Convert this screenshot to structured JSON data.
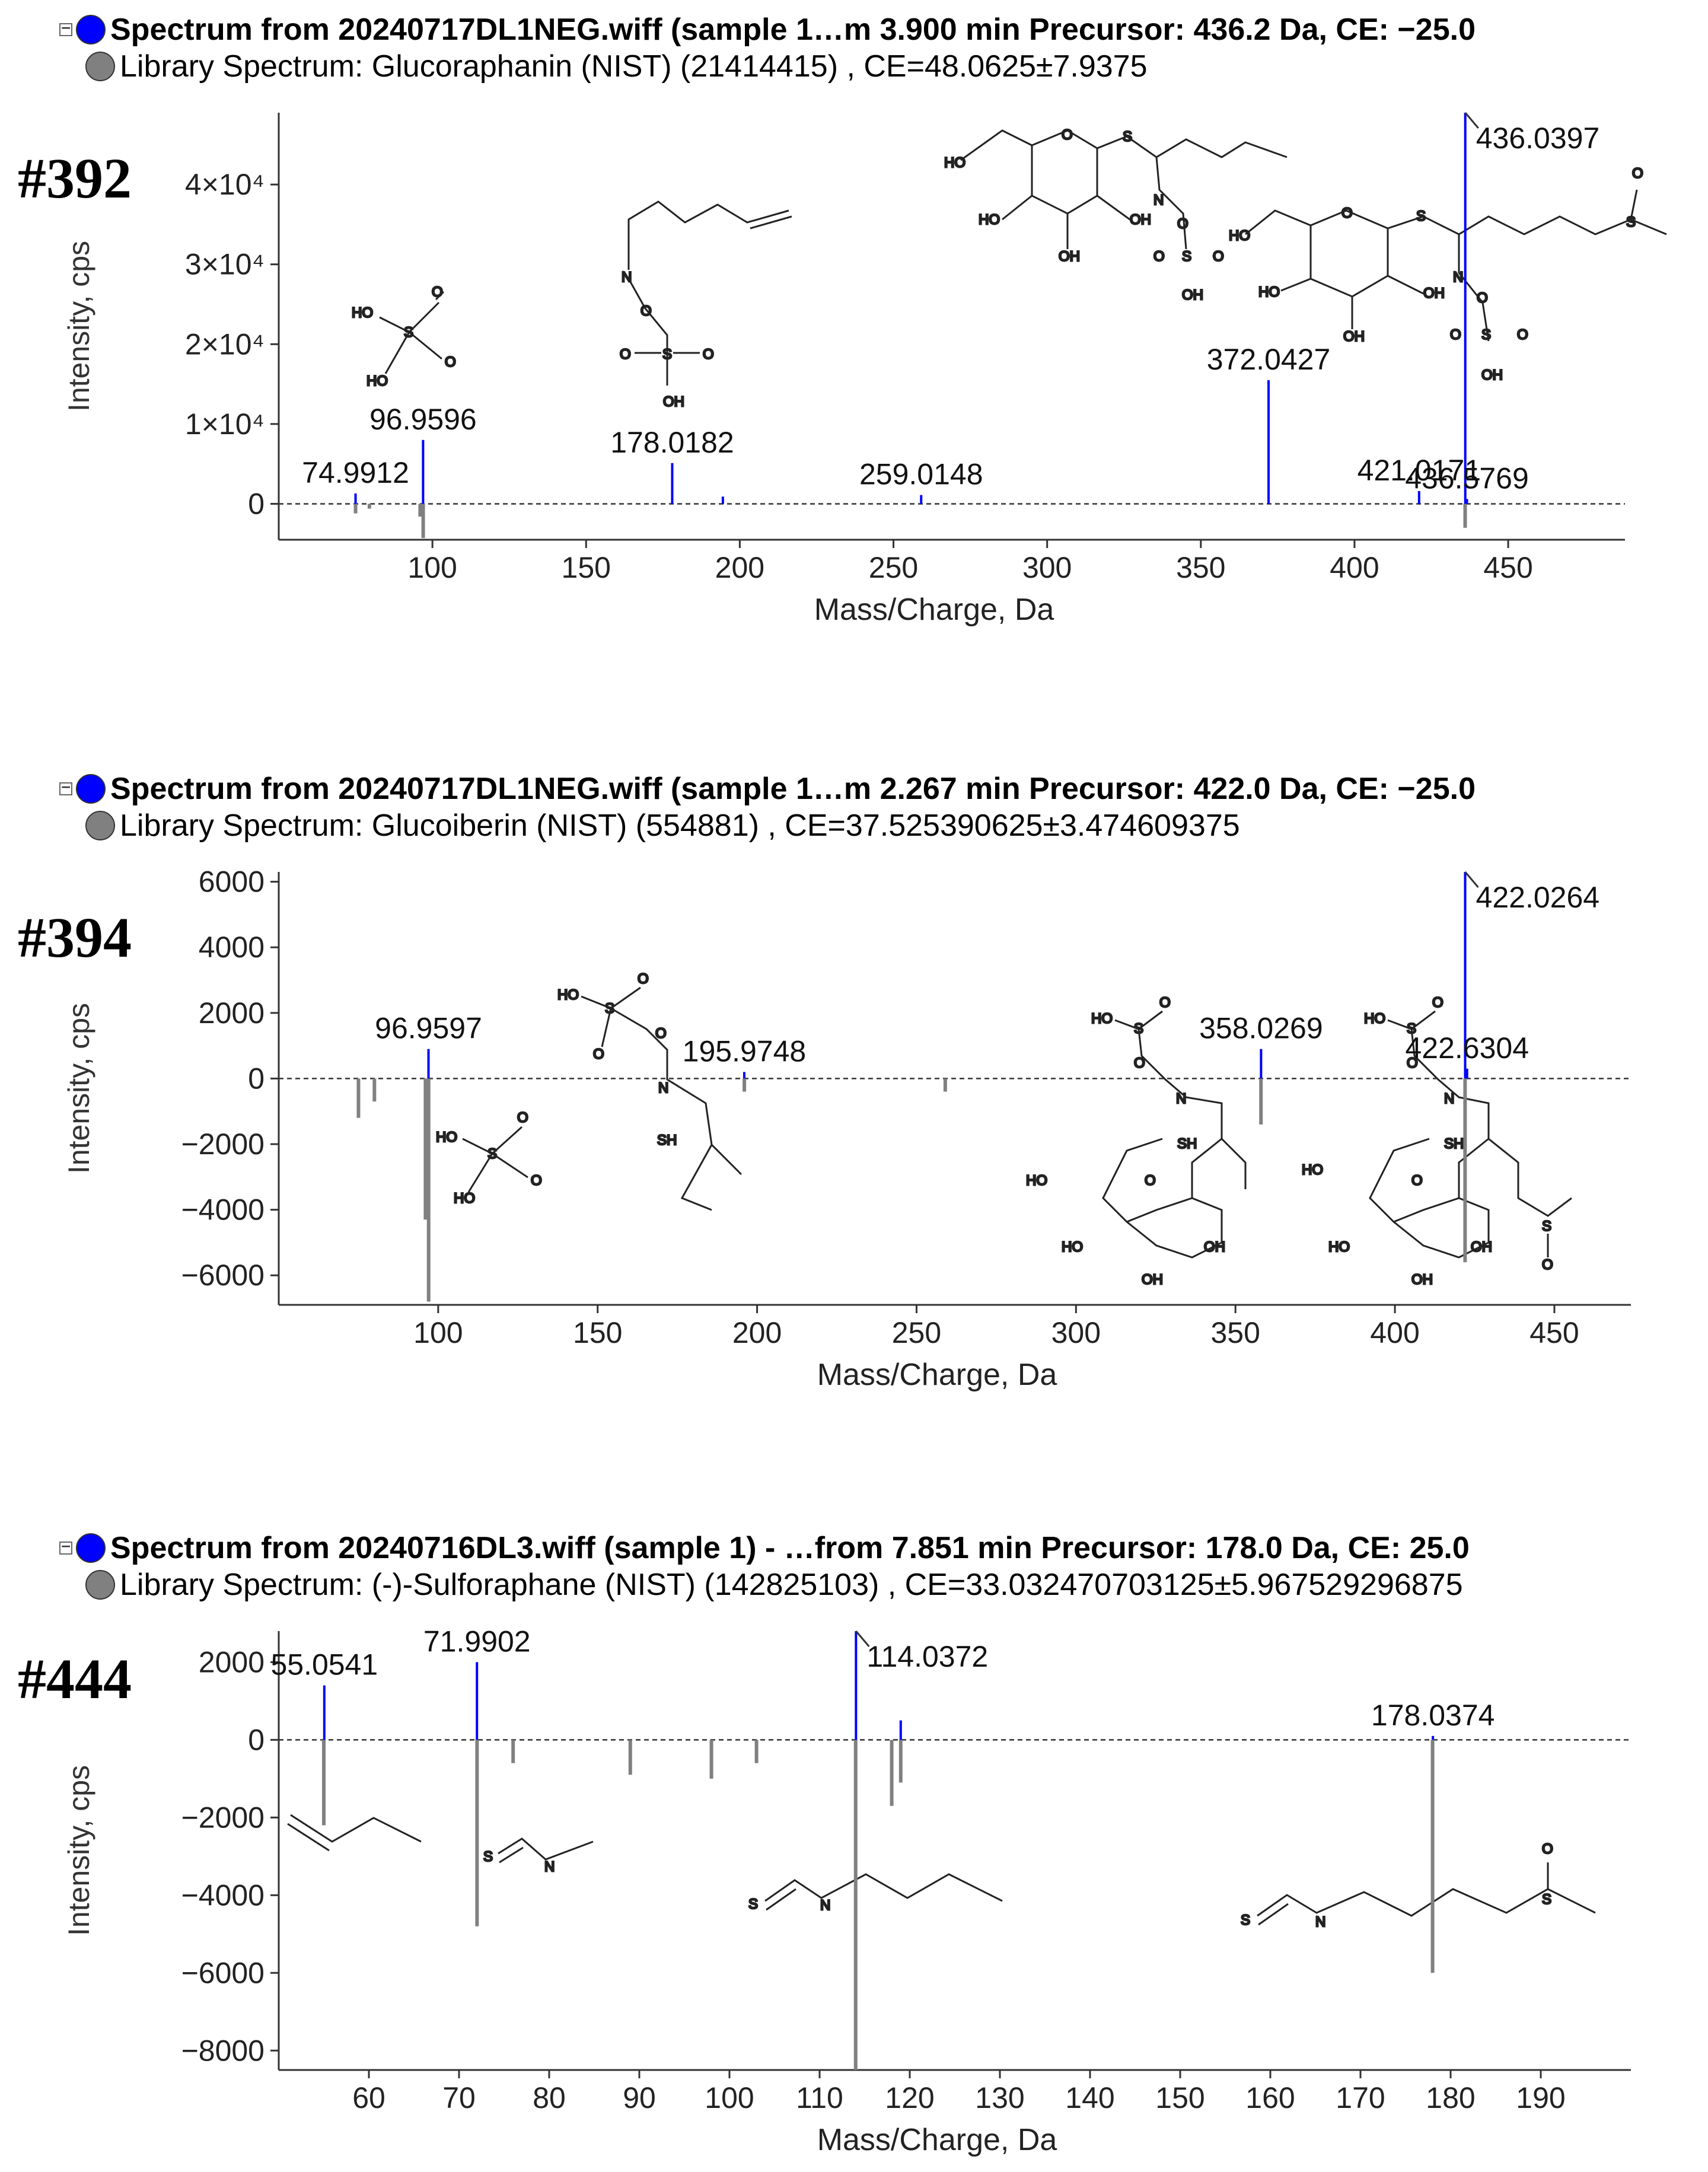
{
  "panels": [
    {
      "id": "#392",
      "header_experimental": "Spectrum from 20240717DL1NEG.wiff (sample 1…m 3.900 min Precursor: 436.2 Da, CE: −25.0",
      "header_library": "Library Spectrum: Glucoraphanin (NIST) (21414415) , CE=48.0625±7.9375",
      "experimental_color": "#0000ff",
      "library_color": "#808080"
    },
    {
      "id": "#394",
      "header_experimental": "Spectrum from 20240717DL1NEG.wiff (sample 1…m 2.267 min Precursor: 422.0 Da, CE: −25.0",
      "header_library": "Library Spectrum: Glucoiberin (NIST) (554881) , CE=37.525390625±3.474609375",
      "experimental_color": "#0000ff",
      "library_color": "#808080"
    },
    {
      "id": "#444",
      "header_experimental": "Spectrum from 20240716DL3.wiff (sample 1) - …from 7.851 min Precursor: 178.0 Da, CE: 25.0",
      "header_library": "Library Spectrum: (-)-Sulforaphane (NIST) (142825103) , CE=33.032470703125±5.967529296875",
      "experimental_color": "#0000ff",
      "library_color": "#808080"
    }
  ],
  "chart_data": [
    {
      "type": "bar",
      "subtype": "mirror-mass-spectrum",
      "xlabel": "Mass/Charge, Da",
      "ylabel": "Intensity, cps",
      "xlim": [
        50,
        488
      ],
      "ylim": [
        -4500,
        49000
      ],
      "xticks": [
        100,
        150,
        200,
        250,
        300,
        350,
        400,
        450
      ],
      "yticks": [
        0,
        10000,
        20000,
        30000,
        40000
      ],
      "ytick_labels": [
        "0",
        "1×10⁴",
        "2×10⁴",
        "3×10⁴",
        "4×10⁴"
      ],
      "grid": false,
      "series": [
        {
          "role": "experimental",
          "values": [
            {
              "x": 74.9912,
              "y": 1300
            },
            {
              "x": 96.9596,
              "y": 8000
            },
            {
              "x": 178.0182,
              "y": 5100
            },
            {
              "x": 194.5,
              "y": 900
            },
            {
              "x": 259.0148,
              "y": 1100
            },
            {
              "x": 372.0427,
              "y": 15500
            },
            {
              "x": 421.0171,
              "y": 1600
            },
            {
              "x": 436.0397,
              "y": 49000
            },
            {
              "x": 436.5769,
              "y": 600
            }
          ]
        },
        {
          "role": "library",
          "values": [
            {
              "x": 75,
              "y": -1200
            },
            {
              "x": 79.5,
              "y": -600
            },
            {
              "x": 97,
              "y": -4300
            },
            {
              "x": 96,
              "y": -1600
            },
            {
              "x": 436,
              "y": -3000
            }
          ]
        }
      ],
      "peak_labels": [
        {
          "x": 74.9912,
          "y": 1300,
          "text": "74.9912"
        },
        {
          "x": 96.9596,
          "y": 8000,
          "text": "96.9596"
        },
        {
          "x": 178.0182,
          "y": 5100,
          "text": "178.0182"
        },
        {
          "x": 259.0148,
          "y": 1100,
          "text": "259.0148"
        },
        {
          "x": 372.0427,
          "y": 15500,
          "text": "372.0427"
        },
        {
          "x": 421.0171,
          "y": 1600,
          "text": "421.0171"
        },
        {
          "x": 436.0397,
          "y": 49000,
          "text": "436.0397"
        },
        {
          "x": 436.5769,
          "y": 600,
          "text": "436.5769"
        }
      ]
    },
    {
      "type": "bar",
      "subtype": "mirror-mass-spectrum",
      "xlabel": "Mass/Charge, Da",
      "ylabel": "Intensity, cps",
      "xlim": [
        50,
        474
      ],
      "ylim": [
        -6900,
        6300
      ],
      "xticks": [
        100,
        150,
        200,
        250,
        300,
        350,
        400,
        450
      ],
      "yticks": [
        -6000,
        -4000,
        -2000,
        0,
        2000,
        4000,
        6000
      ],
      "ytick_labels": [
        "−6000",
        "−4000",
        "−2000",
        "0",
        "2000",
        "4000",
        "6000"
      ],
      "grid": false,
      "series": [
        {
          "role": "experimental",
          "values": [
            {
              "x": 96.9597,
              "y": 900
            },
            {
              "x": 195.9748,
              "y": 200
            },
            {
              "x": 358.0269,
              "y": 900
            },
            {
              "x": 422.0264,
              "y": 6300
            },
            {
              "x": 422.6304,
              "y": 300
            }
          ]
        },
        {
          "role": "library",
          "values": [
            {
              "x": 75,
              "y": -1200
            },
            {
              "x": 80,
              "y": -700
            },
            {
              "x": 96,
              "y": -4300
            },
            {
              "x": 97,
              "y": -6800
            },
            {
              "x": 196,
              "y": -400
            },
            {
              "x": 259,
              "y": -400
            },
            {
              "x": 358,
              "y": -1400
            },
            {
              "x": 422,
              "y": -5600
            }
          ]
        }
      ],
      "peak_labels": [
        {
          "x": 96.9597,
          "y": 900,
          "text": "96.9597"
        },
        {
          "x": 195.9748,
          "y": 200,
          "text": "195.9748"
        },
        {
          "x": 358.0269,
          "y": 900,
          "text": "358.0269"
        },
        {
          "x": 422.0264,
          "y": 6300,
          "text": "422.0264"
        },
        {
          "x": 422.6304,
          "y": 300,
          "text": "422.6304"
        }
      ]
    },
    {
      "type": "bar",
      "subtype": "mirror-mass-spectrum",
      "xlabel": "Mass/Charge, Da",
      "ylabel": "Intensity, cps",
      "xlim": [
        50,
        200
      ],
      "ylim": [
        -8500,
        2800
      ],
      "xticks": [
        60,
        70,
        80,
        90,
        100,
        110,
        120,
        130,
        140,
        150,
        160,
        170,
        180,
        190
      ],
      "yticks": [
        -8000,
        -6000,
        -4000,
        -2000,
        0,
        2000
      ],
      "ytick_labels": [
        "−8000",
        "−6000",
        "−4000",
        "−2000",
        "0",
        "2000"
      ],
      "grid": false,
      "series": [
        {
          "role": "experimental",
          "values": [
            {
              "x": 55.0541,
              "y": 1400
            },
            {
              "x": 71.9902,
              "y": 2000
            },
            {
              "x": 114.0372,
              "y": 2800
            },
            {
              "x": 119,
              "y": 500
            },
            {
              "x": 178.0374,
              "y": 100
            }
          ]
        },
        {
          "role": "library",
          "values": [
            {
              "x": 55,
              "y": -2200
            },
            {
              "x": 72,
              "y": -4800
            },
            {
              "x": 76,
              "y": -600
            },
            {
              "x": 89,
              "y": -900
            },
            {
              "x": 98,
              "y": -1000
            },
            {
              "x": 103,
              "y": -600
            },
            {
              "x": 114,
              "y": -8500
            },
            {
              "x": 118,
              "y": -1700
            },
            {
              "x": 119,
              "y": -1100
            },
            {
              "x": 178,
              "y": -6000
            }
          ]
        }
      ],
      "peak_labels": [
        {
          "x": 55.0541,
          "y": 1400,
          "text": "55.0541"
        },
        {
          "x": 71.9902,
          "y": 2000,
          "text": "71.9902"
        },
        {
          "x": 114.0372,
          "y": 2800,
          "text": "114.0372"
        },
        {
          "x": 178.0374,
          "y": 100,
          "text": "178.0374"
        }
      ]
    }
  ],
  "structure_labels": {
    "p1": {
      "sulfate": [
        "HO",
        "S",
        "O",
        "O",
        "HO"
      ],
      "butenyl": [
        "N",
        "O",
        "O",
        "S",
        "O",
        "OH"
      ],
      "gluco_a": [
        "HO",
        "O",
        "S",
        "N",
        "O",
        "HO",
        "OH",
        "OH",
        "O",
        "S",
        "O",
        "OH"
      ],
      "gluco_b": [
        "HO",
        "O",
        "S",
        "N",
        "O",
        "HO",
        "OH",
        "OH",
        "O",
        "S",
        "O",
        "OH",
        "S",
        "O"
      ]
    },
    "p2": {
      "sulfate_a": [
        "HO",
        "S",
        "O",
        "O",
        "O",
        "N",
        "SH"
      ],
      "sulfate_b": [
        "HO",
        "S",
        "O",
        "O",
        "HO"
      ],
      "gluco_a": [
        "HO",
        "S",
        "O",
        "O",
        "N",
        "SH",
        "HO",
        "O",
        "HO",
        "OH",
        "OH"
      ],
      "gluco_b": [
        "HO",
        "S",
        "O",
        "O",
        "N",
        "SH",
        "HO",
        "O",
        "HO",
        "OH",
        "OH",
        "S",
        "O"
      ]
    },
    "p3": {
      "frag_a": [
        "S",
        "N"
      ],
      "frag_b": [
        "S",
        "N"
      ],
      "frag_c": [
        "S",
        "N",
        "S",
        "O"
      ]
    }
  }
}
